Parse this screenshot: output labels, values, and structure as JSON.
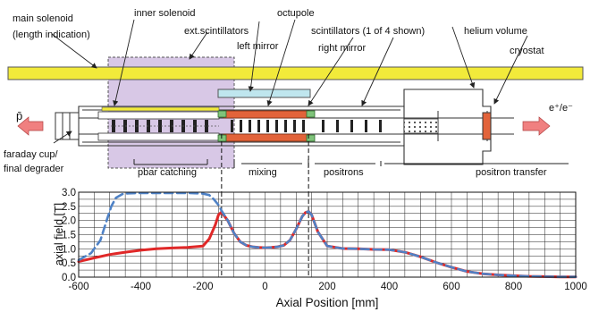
{
  "labels": {
    "main_solenoid": "main solenoid",
    "main_solenoid_sub": "(length indication)",
    "inner_solenoid": "inner solenoid",
    "ext_scintillators": "ext.scintillators",
    "left_mirror": "left mirror",
    "octupole": "octupole",
    "scintillators": "scintillators (1 of 4 shown)",
    "right_mirror": "right mirror",
    "helium_volume": "helium volume",
    "cryostat": "cryostat",
    "pbar_in": "p̄",
    "positron_in": "e⁺/e⁻",
    "faraday_cup": "faraday cup/",
    "final_degrader": "final degrader",
    "pbar_catching": "pbar catching",
    "mixing": "mixing",
    "positrons": "positrons",
    "positron_transfer": "positron transfer"
  },
  "colors": {
    "solenoid_fill": "#f2ea3a",
    "catching_region": "#d8c8e6",
    "octupole": "#e2633a",
    "scintillator": "#bfe6ee",
    "mirror": "#7fc37a",
    "red_curve": "#e02828",
    "blue_curve": "#4f82c6",
    "arrow": "#f08080"
  },
  "chart_data": {
    "type": "line",
    "xlabel": "Axial Position [mm]",
    "ylabel": "axial field [T]",
    "xlim": [
      -600,
      1000
    ],
    "ylim": [
      0.0,
      3.0
    ],
    "x_ticks": [
      "-600",
      "-400",
      "-200",
      "0",
      "200",
      "400",
      "600",
      "800",
      "1000"
    ],
    "y_ticks": [
      "0.0",
      "0.5",
      "1.0",
      "1.5",
      "2.0",
      "2.5",
      "3.0"
    ],
    "x_minor_step": 50,
    "y_minor_step": 0.25,
    "grid": true,
    "markers_x": [
      -140,
      140
    ],
    "series": [
      {
        "style": "solid",
        "color": "#e02828",
        "x": [
          -600,
          -550,
          -500,
          -450,
          -400,
          -350,
          -300,
          -250,
          -200,
          -180,
          -160,
          -150,
          -140,
          -120,
          -100,
          -80,
          -60,
          -40,
          -20,
          0,
          20,
          40,
          60,
          80,
          100,
          120,
          130,
          140,
          150,
          170,
          200,
          250,
          300,
          350,
          400,
          450,
          500,
          550,
          600,
          650,
          700,
          750,
          800,
          850,
          900,
          950,
          1000
        ],
        "y": [
          0.55,
          0.68,
          0.8,
          0.88,
          0.95,
          1.0,
          1.03,
          1.05,
          1.1,
          1.35,
          1.85,
          2.2,
          2.3,
          2.0,
          1.55,
          1.25,
          1.12,
          1.07,
          1.05,
          1.04,
          1.05,
          1.07,
          1.12,
          1.3,
          1.7,
          2.15,
          2.28,
          2.32,
          2.2,
          1.6,
          1.1,
          1.01,
          1.0,
          0.98,
          0.97,
          0.88,
          0.72,
          0.52,
          0.35,
          0.2,
          0.12,
          0.08,
          0.05,
          0.03,
          0.02,
          0.01,
          0.01
        ]
      },
      {
        "style": "dashed",
        "color": "#4f82c6",
        "x": [
          -600,
          -560,
          -530,
          -510,
          -495,
          -480,
          -460,
          -440,
          -400,
          -350,
          -300,
          -250,
          -200,
          -180,
          -165,
          -150,
          -140,
          -120,
          -100,
          -80,
          -60,
          -40,
          -20,
          0,
          20,
          40,
          60,
          80,
          100,
          120,
          130,
          140,
          150,
          170,
          200,
          250,
          300,
          350,
          400,
          450,
          500,
          550,
          600,
          650,
          700,
          750,
          800,
          850,
          900,
          950,
          1000
        ],
        "y": [
          0.6,
          0.85,
          1.3,
          2.0,
          2.5,
          2.8,
          2.93,
          2.96,
          2.97,
          2.97,
          2.97,
          2.97,
          2.95,
          2.9,
          2.75,
          2.55,
          2.35,
          2.0,
          1.55,
          1.25,
          1.12,
          1.07,
          1.05,
          1.04,
          1.05,
          1.07,
          1.12,
          1.3,
          1.7,
          2.15,
          2.28,
          2.32,
          2.2,
          1.6,
          1.1,
          1.01,
          1.0,
          0.98,
          0.97,
          0.88,
          0.72,
          0.52,
          0.35,
          0.2,
          0.12,
          0.08,
          0.05,
          0.03,
          0.02,
          0.01,
          0.01
        ]
      }
    ]
  }
}
